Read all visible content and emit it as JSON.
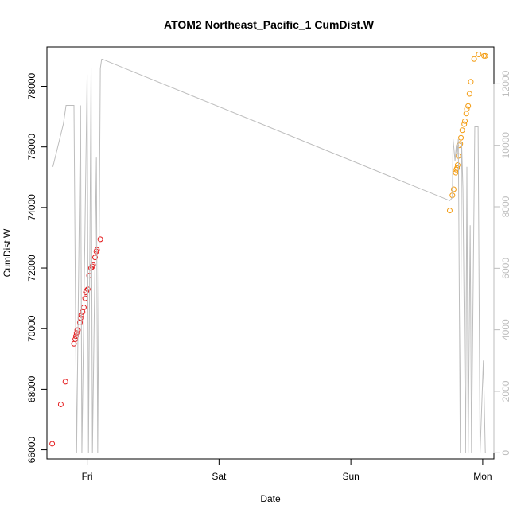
{
  "chart_data": {
    "type": "scatter",
    "title": "ATOM2 Northeast_Pacific_1 CumDist.W",
    "xlabel": "Date",
    "ylabel": "CumDist.W",
    "xlim": [
      -0.305,
      3.085
    ],
    "ylim": [
      65700,
      79300
    ],
    "y2lim": [
      -200,
      13200
    ],
    "x_ticks": [
      {
        "label": "Fri",
        "value": 0
      },
      {
        "label": "Sat",
        "value": 1
      },
      {
        "label": "Sun",
        "value": 2
      },
      {
        "label": "Mon",
        "value": 3
      }
    ],
    "y_ticks": [
      66000,
      68000,
      70000,
      72000,
      74000,
      76000,
      78000
    ],
    "y2_ticks": [
      0,
      2000,
      4000,
      6000,
      8000,
      10000,
      12000
    ],
    "colors": {
      "series1": "#e41a1c",
      "series2": "#f39c12",
      "line": "#bdbdbd"
    },
    "series": [
      {
        "axis": "left",
        "marker": "circle-open",
        "color": "#e41a1c",
        "x": [
          -0.265,
          -0.2,
          -0.165,
          -0.1,
          -0.09,
          -0.085,
          -0.08,
          -0.075,
          -0.07,
          -0.055,
          -0.05,
          -0.045,
          -0.035,
          -0.025,
          -0.015,
          -0.01,
          -0.005,
          0.005,
          0.015,
          0.03,
          0.04,
          0.045,
          0.06,
          0.07,
          0.075,
          0.1
        ],
        "y": [
          66200,
          67500,
          68250,
          69500,
          69650,
          69750,
          69850,
          69950,
          69950,
          70200,
          70350,
          70450,
          70550,
          70700,
          71000,
          71200,
          71250,
          71300,
          71750,
          72000,
          72050,
          72100,
          72350,
          72550,
          72600,
          72950
        ]
      },
      {
        "axis": "left",
        "marker": "circle-open",
        "color": "#f39c12",
        "x": [
          2.75,
          2.77,
          2.78,
          2.795,
          2.8,
          2.805,
          2.81,
          2.815,
          2.82,
          2.83,
          2.835,
          2.845,
          2.86,
          2.865,
          2.875,
          2.88,
          2.89,
          2.9,
          2.91,
          2.935,
          2.97,
          3.01,
          3.02
        ],
        "y": [
          73900,
          74400,
          74600,
          75150,
          75250,
          75300,
          75400,
          75700,
          76050,
          76100,
          76300,
          76550,
          76750,
          76850,
          77100,
          77250,
          77350,
          77750,
          78150,
          78900,
          79050,
          79000,
          79000
        ]
      },
      {
        "axis": "right",
        "type": "line",
        "color": "#bdbdbd",
        "x": [
          -0.26,
          -0.18,
          -0.16,
          -0.1,
          -0.08,
          -0.05,
          -0.04,
          0.0,
          0.01,
          0.03,
          0.04,
          0.07,
          0.08,
          0.1,
          0.11,
          0.115,
          2.75,
          2.77,
          2.775,
          2.79,
          2.8,
          2.805,
          2.815,
          2.83,
          2.84,
          2.85,
          2.87,
          2.88,
          2.89,
          2.905,
          2.915,
          2.94,
          2.955,
          2.965,
          2.98,
          3.005,
          3.02,
          3.025
        ],
        "y": [
          9300,
          10700,
          11300,
          11300,
          0,
          11300,
          0,
          12300,
          0,
          12500,
          0,
          9600,
          0,
          12500,
          12800,
          12800,
          8200,
          8300,
          10200,
          9500,
          10000,
          9600,
          10200,
          0,
          10100,
          8600,
          0,
          9300,
          0,
          7400,
          0,
          10600,
          10600,
          10600,
          0,
          3000,
          0,
          0
        ]
      }
    ]
  }
}
